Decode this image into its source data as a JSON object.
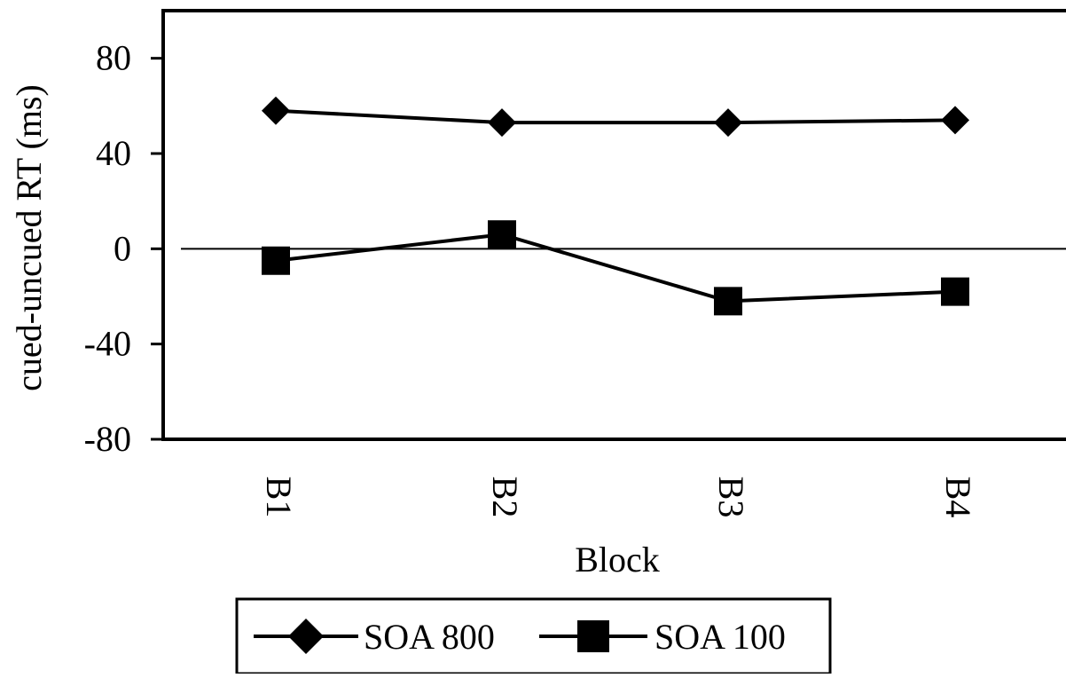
{
  "chart_data": {
    "type": "line",
    "categories": [
      "B1",
      "B2",
      "B3",
      "B4"
    ],
    "series": [
      {
        "name": "SOA 800",
        "marker": "diamond",
        "values": [
          58,
          53,
          53,
          54
        ]
      },
      {
        "name": "SOA 100",
        "marker": "square",
        "values": [
          -5,
          6,
          -22,
          -18
        ]
      }
    ],
    "ylim": [
      -80,
      100
    ],
    "yticks": [
      80,
      40,
      0,
      -40,
      -80
    ],
    "ytick_labels": [
      "80",
      "40",
      "0",
      "-40",
      "-80"
    ],
    "xlabel": "Block",
    "ylabel": "cued-uncued RT (ms)",
    "zero_line": true,
    "grid": false,
    "legend_position": "bottom"
  }
}
